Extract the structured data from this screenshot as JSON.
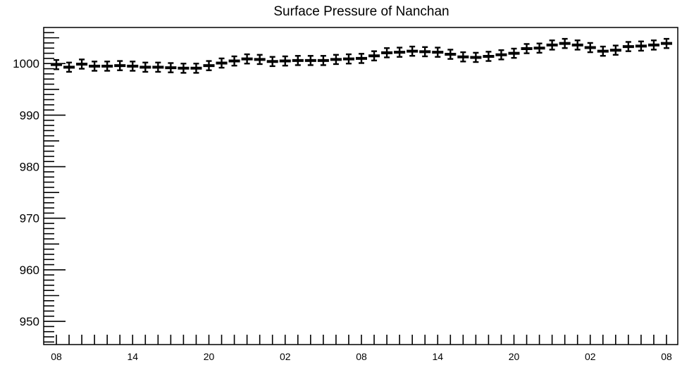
{
  "chart_data": {
    "type": "scatter",
    "title": "Surface Pressure of Nanchan",
    "xlabel": "",
    "ylabel": "",
    "x_tick_labels": [
      "08",
      "14",
      "20",
      "02",
      "08",
      "14",
      "20",
      "02",
      "08"
    ],
    "y_ticks": [
      950,
      960,
      970,
      980,
      990,
      1000
    ],
    "ylim": [
      945.5,
      1007
    ],
    "grid": false,
    "error_bars": true,
    "series": [
      {
        "values": [
          999.8,
          999.3,
          999.9,
          999.5,
          999.5,
          999.6,
          999.5,
          999.3,
          999.3,
          999.2,
          999.1,
          999.1,
          999.6,
          1000.1,
          1000.5,
          1000.9,
          1000.8,
          1000.4,
          1000.5,
          1000.6,
          1000.6,
          1000.6,
          1000.8,
          1000.9,
          1001.0,
          1001.5,
          1002.1,
          1002.2,
          1002.4,
          1002.3,
          1002.2,
          1001.8,
          1001.3,
          1001.2,
          1001.4,
          1001.7,
          1002.0,
          1002.9,
          1003.0,
          1003.6,
          1003.9,
          1003.6,
          1003.1,
          1002.4,
          1002.6,
          1003.3,
          1003.4,
          1003.6,
          1003.9
        ],
        "errors": [
          0.9,
          0.9,
          0.9,
          0.9,
          0.9,
          0.9,
          0.9,
          0.9,
          0.9,
          0.9,
          0.9,
          0.9,
          0.9,
          0.9,
          0.9,
          0.9,
          0.9,
          0.9,
          0.9,
          0.9,
          0.9,
          0.9,
          0.9,
          0.9,
          0.9,
          0.9,
          0.9,
          0.9,
          0.9,
          0.9,
          0.9,
          0.9,
          0.9,
          0.9,
          0.9,
          0.9,
          0.9,
          0.9,
          0.9,
          0.9,
          0.9,
          0.9,
          0.9,
          0.9,
          0.9,
          0.9,
          0.9,
          0.9,
          0.9
        ]
      }
    ]
  }
}
